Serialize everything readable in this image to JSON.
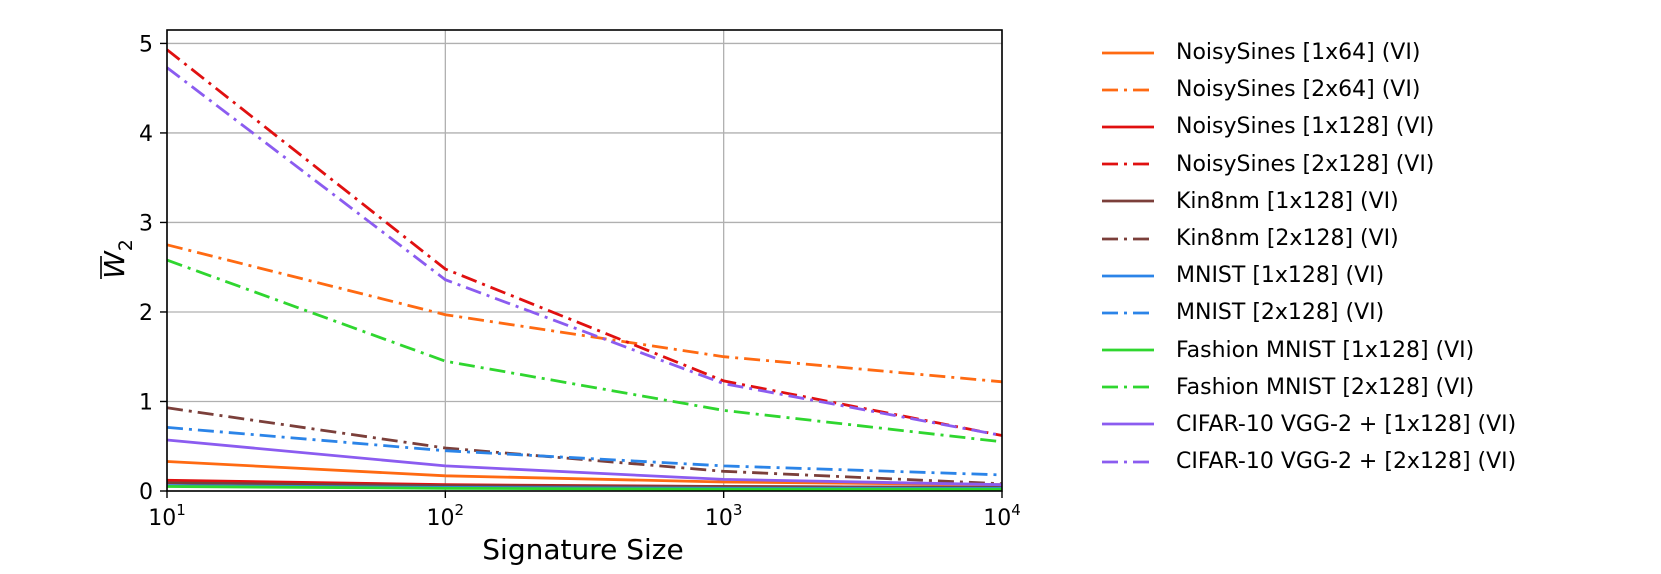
{
  "chart_data": {
    "type": "line",
    "xlabel": "Signature Size",
    "ylabel": "W",
    "ylabel_subscript": "2",
    "x_scale": "log",
    "xlim": [
      10,
      10000
    ],
    "ylim": [
      0,
      5.15
    ],
    "x_ticks": [
      {
        "value": 10,
        "base": "10",
        "exp": "1"
      },
      {
        "value": 100,
        "base": "10",
        "exp": "2"
      },
      {
        "value": 1000,
        "base": "10",
        "exp": "3"
      },
      {
        "value": 10000,
        "base": "10",
        "exp": "4"
      }
    ],
    "y_ticks": [
      0,
      1,
      2,
      3,
      4,
      5
    ],
    "grid": true,
    "legend_position": "outside-right",
    "x": [
      10,
      100,
      1000,
      10000
    ],
    "series": [
      {
        "name": "NoisySines [1x64] (VI)",
        "color": "#ff6a12",
        "dash": "solid",
        "values": [
          0.33,
          0.17,
          0.1,
          0.07
        ]
      },
      {
        "name": "NoisySines [2x64] (VI)",
        "color": "#ff6a12",
        "dash": "dashdot",
        "values": [
          2.75,
          1.97,
          1.5,
          1.22
        ]
      },
      {
        "name": "NoisySines [1x128] (VI)",
        "color": "#e01010",
        "dash": "solid",
        "values": [
          0.12,
          0.07,
          0.05,
          0.04
        ]
      },
      {
        "name": "NoisySines [2x128] (VI)",
        "color": "#e01010",
        "dash": "dashdot",
        "values": [
          4.93,
          2.48,
          1.23,
          0.62
        ]
      },
      {
        "name": "Kin8nm [1x128] (VI)",
        "color": "#7b3f3a",
        "dash": "solid",
        "values": [
          0.09,
          0.06,
          0.05,
          0.04
        ]
      },
      {
        "name": "Kin8nm [2x128] (VI)",
        "color": "#7b3f3a",
        "dash": "dashdot",
        "values": [
          0.93,
          0.48,
          0.22,
          0.08
        ]
      },
      {
        "name": "MNIST [1x128] (VI)",
        "color": "#2b84e8",
        "dash": "solid",
        "values": [
          0.06,
          0.04,
          0.03,
          0.03
        ]
      },
      {
        "name": "MNIST [2x128] (VI)",
        "color": "#2b84e8",
        "dash": "dashdot",
        "values": [
          0.71,
          0.45,
          0.28,
          0.18
        ]
      },
      {
        "name": "Fashion MNIST [1x128] (VI)",
        "color": "#2fd62f",
        "dash": "solid",
        "values": [
          0.05,
          0.03,
          0.02,
          0.02
        ]
      },
      {
        "name": "Fashion MNIST [2x128] (VI)",
        "color": "#2fd62f",
        "dash": "dashdot",
        "values": [
          2.58,
          1.45,
          0.9,
          0.55
        ]
      },
      {
        "name": "CIFAR-10 VGG-2 + [1x128] (VI)",
        "color": "#8b5cf0",
        "dash": "solid",
        "values": [
          0.57,
          0.28,
          0.13,
          0.07
        ]
      },
      {
        "name": "CIFAR-10 VGG-2 + [2x128] (VI)",
        "color": "#8b5cf0",
        "dash": "dashdot",
        "values": [
          4.73,
          2.36,
          1.2,
          0.62
        ]
      }
    ]
  }
}
